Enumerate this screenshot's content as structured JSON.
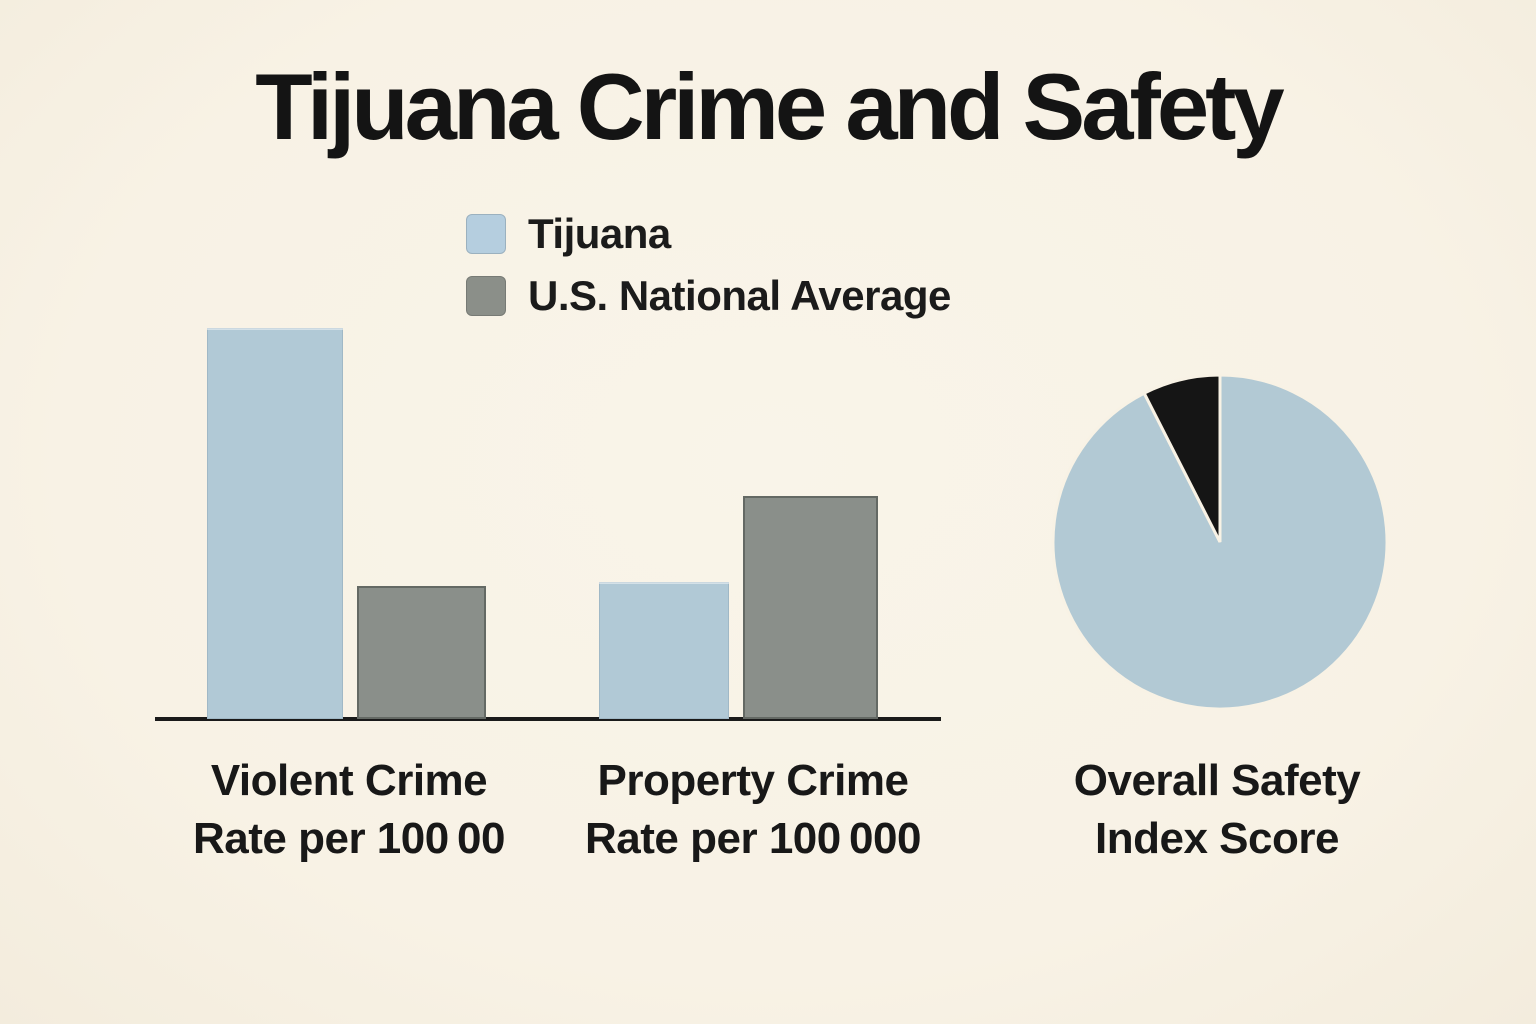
{
  "title": "Tijuana Crime and Safety",
  "colors": {
    "background": "#f8f2e5",
    "text": "#161616",
    "axis_line": "#1a1a1a",
    "tijuana_blue": "#b1c9d6",
    "us_gray": "#8a8f8a",
    "pie_black": "#151515"
  },
  "legend": {
    "items": [
      {
        "label": "Tijuana",
        "color": "#b5cedf"
      },
      {
        "label": "U.S. National Average",
        "color": "#8b8f89"
      }
    ]
  },
  "labels": {
    "violent": [
      "Violent Crime",
      "Rate per 100 00"
    ],
    "property": [
      "Property Crime",
      "Rate per 100 000"
    ],
    "pie": [
      "Overall Safety",
      "Index Score"
    ]
  },
  "chart_data": [
    {
      "type": "bar",
      "title": "Tijuana Crime and Safety",
      "categories": [
        "Violent Crime Rate per 100 00",
        "Property Crime Rate per 100 000"
      ],
      "series": [
        {
          "name": "Tijuana",
          "color": "#b1c9d6",
          "values": [
            100,
            35
          ]
        },
        {
          "name": "U.S. National Average",
          "color": "#8a8f8a",
          "values": [
            34,
            57
          ]
        }
      ],
      "xlabel": "",
      "ylabel": "",
      "value_note": "no numeric axis shown in image; values are relative bar heights as % of tallest bar",
      "legend_position": "top",
      "grid": false
    },
    {
      "type": "pie",
      "title": "Overall Safety Index Score",
      "slices": [
        {
          "label": "light blue slice",
          "value": 92.5,
          "color": "#b2c9d4"
        },
        {
          "label": "black slice",
          "value": 7.5,
          "color": "#151515"
        }
      ],
      "value_note": "no numeric labels shown in image; slice sizes estimated from angles (black wedge ~27deg ending at 12 o'clock)",
      "start_angle_deg": 0,
      "direction": "clockwise"
    }
  ]
}
